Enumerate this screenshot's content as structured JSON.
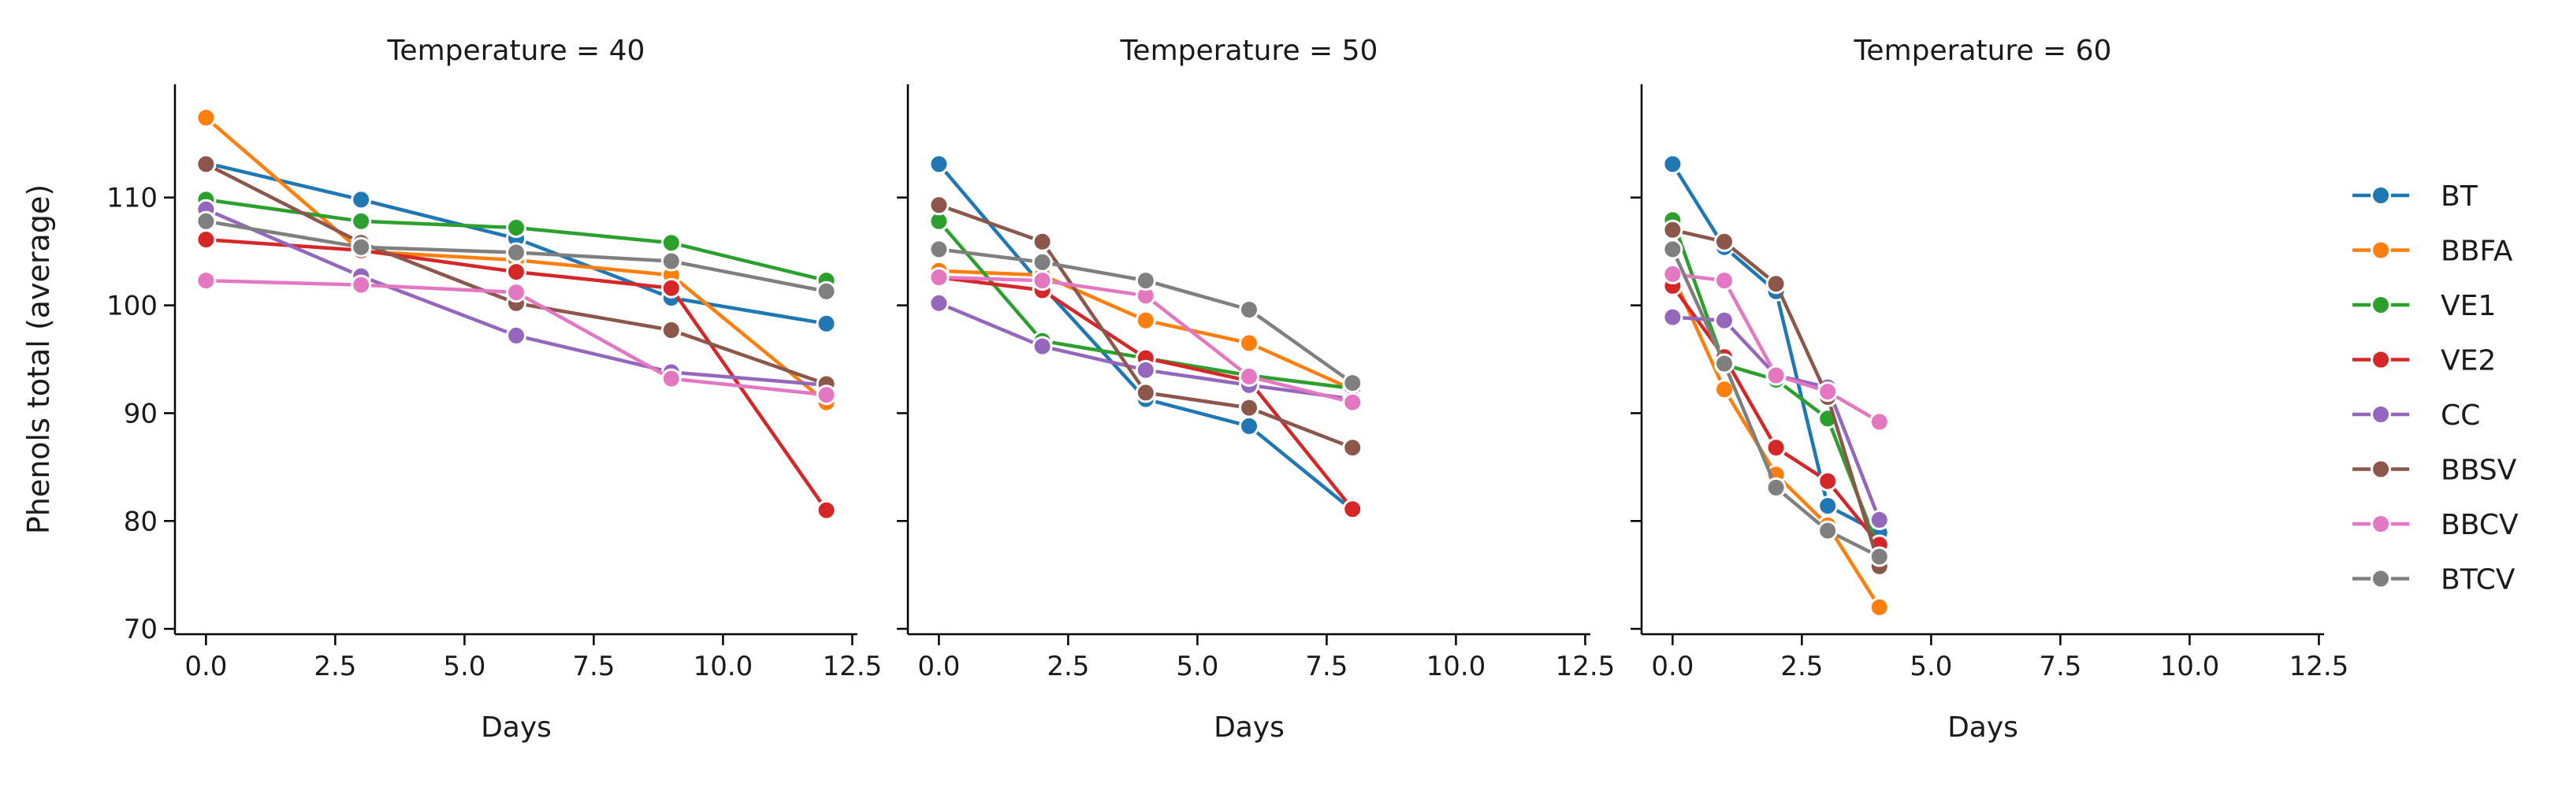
{
  "chart_data": {
    "type": "line",
    "facet_by": "Temperature",
    "ylabel": "Phenols total (average)",
    "xlabel": "Days",
    "xlim": [
      -0.6,
      12.6
    ],
    "ylim": [
      69.5,
      120.5
    ],
    "xticks": [
      0.0,
      2.5,
      5.0,
      7.5,
      10.0,
      12.5
    ],
    "xtick_labels": [
      "0.0",
      "2.5",
      "5.0",
      "7.5",
      "10.0",
      "12.5"
    ],
    "yticks": [
      70,
      80,
      90,
      100,
      110
    ],
    "ytick_labels": [
      "70",
      "80",
      "90",
      "100",
      "110"
    ],
    "legend_position": "right",
    "grid": false,
    "series_meta": [
      {
        "name": "BT",
        "color": "#1f77b4"
      },
      {
        "name": "BBFA",
        "color": "#ff7f0e"
      },
      {
        "name": "VE1",
        "color": "#2ca02c"
      },
      {
        "name": "VE2",
        "color": "#d62728"
      },
      {
        "name": "CC",
        "color": "#9467bd"
      },
      {
        "name": "BBSV",
        "color": "#8c564b"
      },
      {
        "name": "BBCV",
        "color": "#e377c2"
      },
      {
        "name": "BTCV",
        "color": "#7f7f7f"
      }
    ],
    "panels": [
      {
        "title": "Temperature = 40",
        "series": [
          {
            "name": "BT",
            "x": [
              0,
              3,
              6,
              9,
              12
            ],
            "y": [
              113.2,
              109.8,
              106.2,
              100.7,
              98.3
            ]
          },
          {
            "name": "BBFA",
            "x": [
              0,
              3,
              6,
              9,
              12
            ],
            "y": [
              117.4,
              105.0,
              104.2,
              102.8,
              91.0
            ]
          },
          {
            "name": "VE1",
            "x": [
              0,
              3,
              6,
              9,
              12
            ],
            "y": [
              109.8,
              107.8,
              107.2,
              105.8,
              102.3
            ]
          },
          {
            "name": "VE2",
            "x": [
              0,
              3,
              6,
              9,
              12
            ],
            "y": [
              106.1,
              105.1,
              103.1,
              101.6,
              81.0
            ]
          },
          {
            "name": "CC",
            "x": [
              0,
              3,
              6,
              9,
              12
            ],
            "y": [
              108.9,
              102.7,
              97.2,
              93.8,
              92.6
            ]
          },
          {
            "name": "BBSV",
            "x": [
              0,
              3,
              6,
              9,
              12
            ],
            "y": [
              113.1,
              105.8,
              100.2,
              97.7,
              92.7
            ]
          },
          {
            "name": "BBCV",
            "x": [
              0,
              3,
              6,
              9,
              12
            ],
            "y": [
              102.3,
              101.9,
              101.2,
              93.2,
              91.7
            ]
          },
          {
            "name": "BTCV",
            "x": [
              0,
              3,
              6,
              9,
              12
            ],
            "y": [
              107.8,
              105.4,
              104.9,
              104.1,
              101.3
            ]
          }
        ]
      },
      {
        "title": "Temperature = 50",
        "series": [
          {
            "name": "BT",
            "x": [
              0,
              2,
              4,
              6,
              8
            ],
            "y": [
              113.1,
              101.8,
              91.3,
              88.8,
              81.0
            ]
          },
          {
            "name": "BBFA",
            "x": [
              0,
              2,
              4,
              6,
              8
            ],
            "y": [
              103.2,
              102.8,
              98.6,
              96.5,
              92.2
            ]
          },
          {
            "name": "VE1",
            "x": [
              0,
              2,
              4,
              6,
              8
            ],
            "y": [
              107.8,
              96.7,
              95.1,
              93.5,
              92.3
            ]
          },
          {
            "name": "VE2",
            "x": [
              0,
              2,
              4,
              6,
              8
            ],
            "y": [
              102.6,
              101.4,
              95.1,
              93.0,
              81.1
            ]
          },
          {
            "name": "CC",
            "x": [
              0,
              2,
              4,
              6,
              8
            ],
            "y": [
              100.2,
              96.2,
              94.0,
              92.6,
              91.3
            ]
          },
          {
            "name": "BBSV",
            "x": [
              0,
              2,
              4,
              6,
              8
            ],
            "y": [
              109.3,
              105.9,
              91.9,
              90.5,
              86.8
            ]
          },
          {
            "name": "BBCV",
            "x": [
              0,
              2,
              4,
              6,
              8
            ],
            "y": [
              102.6,
              102.3,
              100.9,
              93.4,
              91.0
            ]
          },
          {
            "name": "BTCV",
            "x": [
              0,
              2,
              4,
              6,
              8
            ],
            "y": [
              105.2,
              104.0,
              102.3,
              99.6,
              92.8
            ]
          }
        ]
      },
      {
        "title": "Temperature = 60",
        "series": [
          {
            "name": "BT",
            "x": [
              0,
              1,
              2,
              3,
              4
            ],
            "y": [
              113.1,
              105.4,
              101.3,
              81.4,
              78.9
            ]
          },
          {
            "name": "BBFA",
            "x": [
              0,
              1,
              2,
              3,
              4
            ],
            "y": [
              102.8,
              92.2,
              84.3,
              79.6,
              72.0
            ]
          },
          {
            "name": "VE1",
            "x": [
              0,
              1,
              2,
              3,
              4
            ],
            "y": [
              107.9,
              94.5,
              93.1,
              89.5,
              77.2
            ]
          },
          {
            "name": "VE2",
            "x": [
              0,
              1,
              2,
              3,
              4
            ],
            "y": [
              101.8,
              95.2,
              86.8,
              83.7,
              77.8
            ]
          },
          {
            "name": "CC",
            "x": [
              0,
              1,
              2,
              3,
              4
            ],
            "y": [
              98.9,
              98.6,
              93.5,
              92.4,
              80.1
            ]
          },
          {
            "name": "BBSV",
            "x": [
              0,
              1,
              2,
              3,
              4
            ],
            "y": [
              107.0,
              105.9,
              102.0,
              91.5,
              75.8
            ]
          },
          {
            "name": "BBCV",
            "x": [
              0,
              1,
              2,
              3,
              4
            ],
            "y": [
              102.9,
              102.3,
              93.5,
              92.0,
              89.2
            ]
          },
          {
            "name": "BTCV",
            "x": [
              0,
              1,
              2,
              3,
              4
            ],
            "y": [
              105.2,
              94.6,
              83.1,
              79.1,
              76.7
            ]
          }
        ]
      }
    ]
  }
}
